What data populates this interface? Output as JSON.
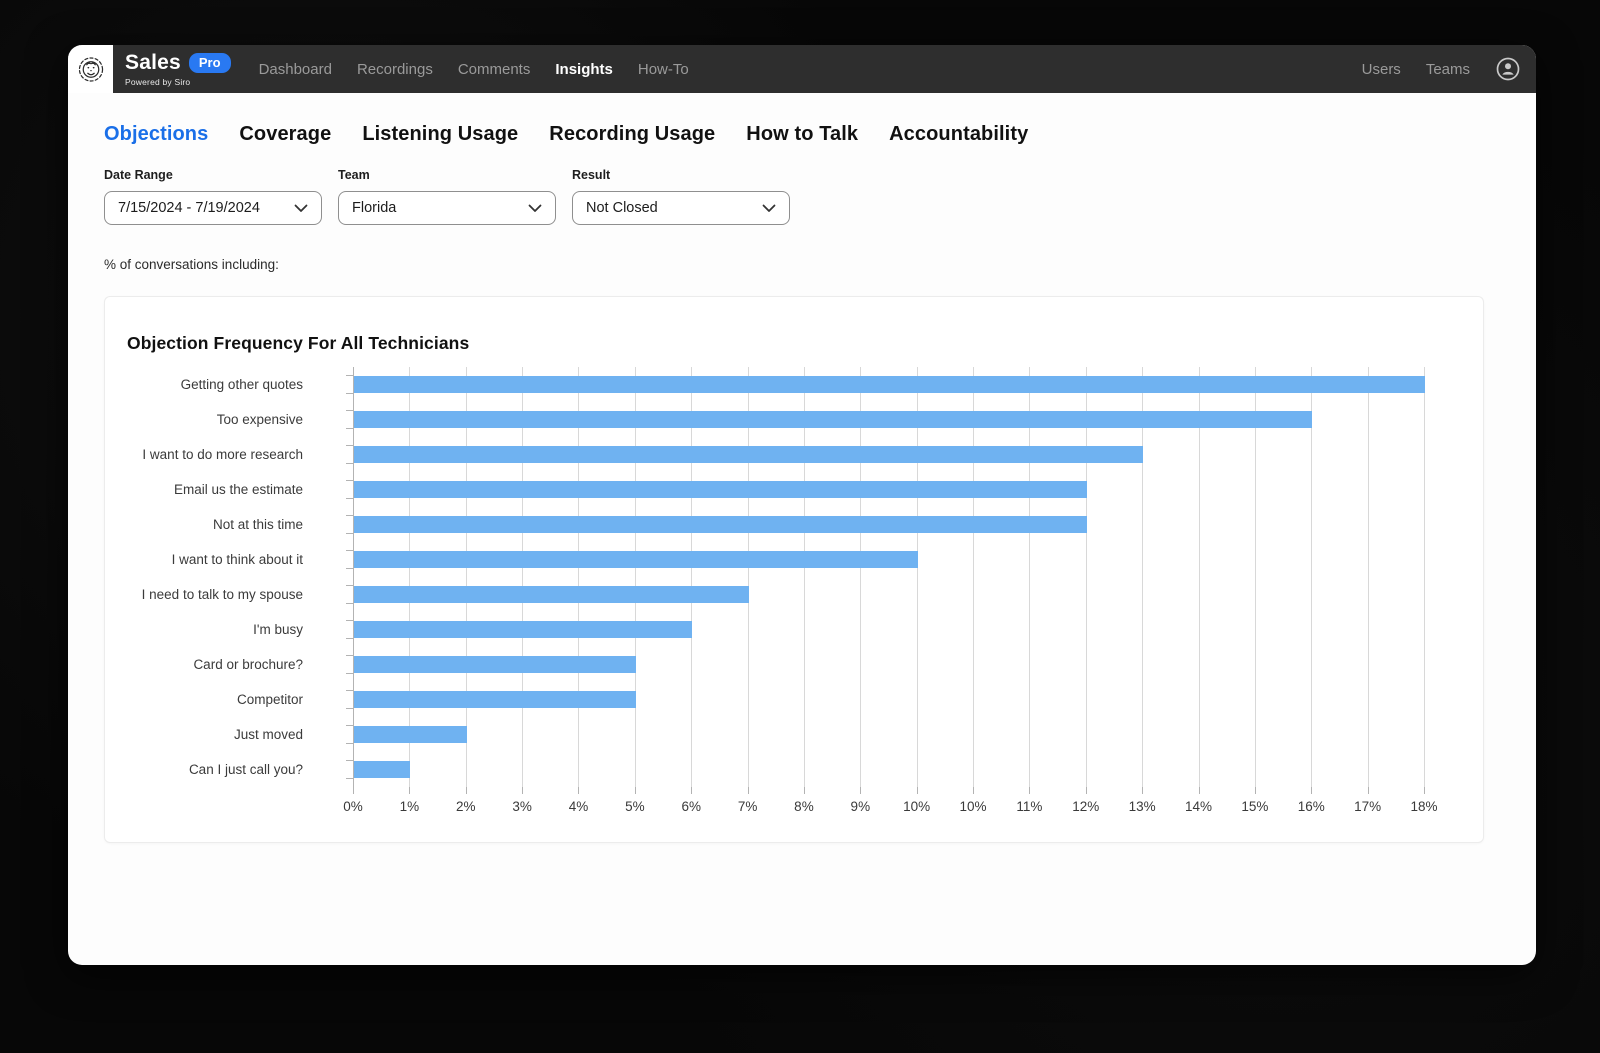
{
  "navbar": {
    "brand": {
      "name": "Sales",
      "badge": "Pro",
      "tagline": "Powered by Siro"
    },
    "items": [
      {
        "label": "Dashboard",
        "active": false
      },
      {
        "label": "Recordings",
        "active": false
      },
      {
        "label": "Comments",
        "active": false
      },
      {
        "label": "Insights",
        "active": true
      },
      {
        "label": "How-To",
        "active": false
      }
    ],
    "right_items": [
      {
        "label": "Users"
      },
      {
        "label": "Teams"
      }
    ]
  },
  "tabs": [
    {
      "label": "Objections",
      "active": true
    },
    {
      "label": "Coverage",
      "active": false
    },
    {
      "label": "Listening Usage",
      "active": false
    },
    {
      "label": "Recording Usage",
      "active": false
    },
    {
      "label": "How to Talk",
      "active": false
    },
    {
      "label": "Accountability",
      "active": false
    }
  ],
  "filters": [
    {
      "label": "Date Range",
      "value": "7/15/2024 - 7/19/2024"
    },
    {
      "label": "Team",
      "value": "Florida"
    },
    {
      "label": "Result",
      "value": "Not Closed"
    }
  ],
  "subtitle": "% of conversations including:",
  "chart_data": {
    "type": "bar",
    "orientation": "horizontal",
    "title": "Objection Frequency For All Technicians",
    "categories": [
      "Getting other quotes",
      "Too expensive",
      "I want to do more research",
      "Email us the estimate",
      "Not at this time",
      "I want to think about it",
      "I need to talk to my spouse",
      "I'm busy",
      "Card or brochure?",
      "Competitor",
      "Just moved",
      "Can I just call you?"
    ],
    "values": [
      18,
      16,
      13,
      12,
      12,
      10,
      7,
      6,
      5,
      5,
      2,
      1
    ],
    "unit": "%",
    "xlim": [
      0,
      18
    ],
    "x_tick_labels": [
      "0%",
      "1%",
      "2%",
      "3%",
      "4%",
      "5%",
      "6%",
      "7%",
      "8%",
      "9%",
      "10%",
      "10%",
      "11%",
      "12%",
      "13%",
      "14%",
      "15%",
      "16%",
      "17%",
      "18%"
    ],
    "grid": true,
    "legend": false,
    "bar_color": "#6fb2f1"
  },
  "colors": {
    "accent_blue": "#1a6fe8",
    "badge_blue": "#2979f2",
    "bar_blue": "#6fb2f1",
    "navbar_bg": "#2e2e2e",
    "gridline": "#d8d8d8"
  }
}
